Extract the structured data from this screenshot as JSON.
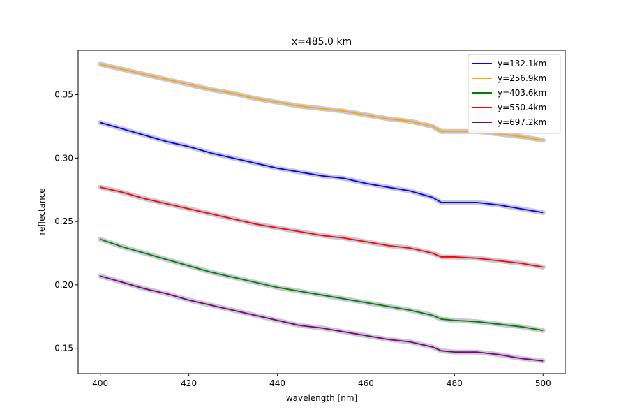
{
  "chart_data": {
    "type": "line",
    "title": "x=485.0 km",
    "xlabel": "wavelength [nm]",
    "ylabel": "reflectance",
    "xlim": [
      395,
      505
    ],
    "ylim": [
      0.13,
      0.385
    ],
    "xticks": [
      400,
      420,
      440,
      460,
      480,
      500
    ],
    "xtick_labels": [
      "400",
      "420",
      "440",
      "460",
      "480",
      "500"
    ],
    "yticks": [
      0.15,
      0.2,
      0.25,
      0.3,
      0.35
    ],
    "ytick_labels": [
      "0.15",
      "0.20",
      "0.25",
      "0.30",
      "0.35"
    ],
    "grid": false,
    "legend_position": "top-right",
    "uncertainty_band_color": "#c8c8d2",
    "x": [
      400,
      405,
      410,
      415,
      420,
      425,
      430,
      435,
      440,
      445,
      450,
      455,
      460,
      465,
      470,
      475,
      477,
      480,
      485,
      490,
      495,
      500
    ],
    "series": [
      {
        "name": "y=132.1km",
        "color": "#0000ff",
        "values": [
          0.328,
          0.323,
          0.318,
          0.313,
          0.309,
          0.304,
          0.3,
          0.296,
          0.292,
          0.289,
          0.286,
          0.284,
          0.28,
          0.277,
          0.274,
          0.269,
          0.265,
          0.265,
          0.265,
          0.263,
          0.26,
          0.257
        ]
      },
      {
        "name": "y=256.9km",
        "color": "#ffa500",
        "values": [
          0.374,
          0.37,
          0.366,
          0.362,
          0.358,
          0.354,
          0.351,
          0.347,
          0.344,
          0.341,
          0.339,
          0.337,
          0.334,
          0.331,
          0.329,
          0.325,
          0.321,
          0.321,
          0.321,
          0.319,
          0.317,
          0.314
        ]
      },
      {
        "name": "y=403.6km",
        "color": "#008000",
        "values": [
          0.236,
          0.23,
          0.225,
          0.22,
          0.215,
          0.21,
          0.206,
          0.202,
          0.198,
          0.195,
          0.192,
          0.189,
          0.186,
          0.183,
          0.18,
          0.176,
          0.173,
          0.172,
          0.171,
          0.169,
          0.167,
          0.164
        ]
      },
      {
        "name": "y=550.4km",
        "color": "#ff0000",
        "values": [
          0.277,
          0.273,
          0.268,
          0.264,
          0.26,
          0.256,
          0.252,
          0.248,
          0.245,
          0.242,
          0.239,
          0.237,
          0.234,
          0.231,
          0.229,
          0.225,
          0.222,
          0.222,
          0.221,
          0.219,
          0.217,
          0.214
        ]
      },
      {
        "name": "y=697.2km",
        "color": "#800080",
        "values": [
          0.207,
          0.202,
          0.197,
          0.193,
          0.188,
          0.184,
          0.18,
          0.176,
          0.172,
          0.168,
          0.166,
          0.163,
          0.16,
          0.157,
          0.155,
          0.151,
          0.148,
          0.147,
          0.147,
          0.145,
          0.142,
          0.14
        ]
      }
    ]
  }
}
